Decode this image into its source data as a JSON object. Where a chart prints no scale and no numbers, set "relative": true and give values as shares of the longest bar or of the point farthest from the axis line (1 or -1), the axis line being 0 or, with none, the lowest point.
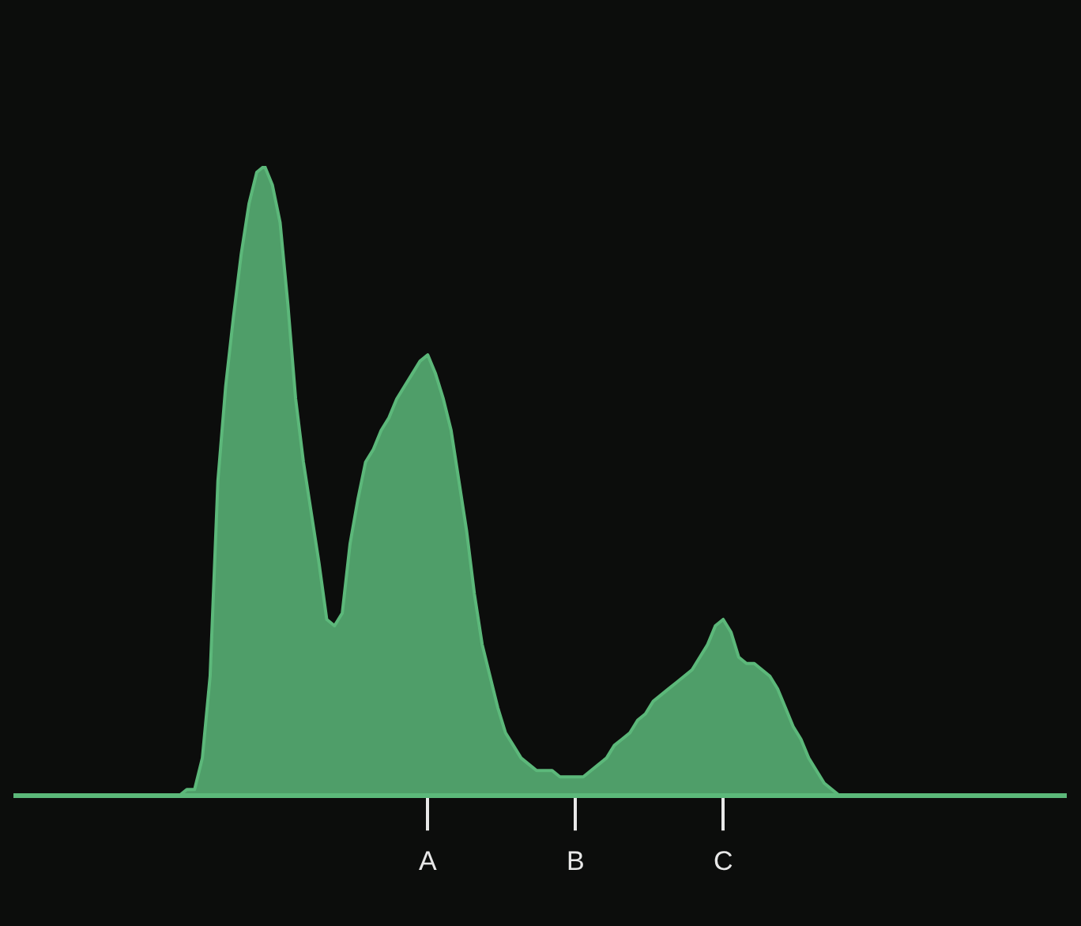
{
  "chart_data": {
    "type": "area",
    "relative": true,
    "color": "#5cb87a",
    "categories": [
      null,
      null,
      null,
      null,
      null,
      null,
      null,
      null,
      null,
      null,
      null,
      null,
      null,
      null,
      null,
      null,
      null,
      null,
      null,
      null,
      null,
      null,
      null,
      null,
      null,
      null,
      null,
      null,
      null,
      null,
      null,
      null,
      null,
      null,
      null,
      null,
      null,
      null,
      null,
      null,
      null,
      null,
      null,
      null,
      null,
      null,
      null,
      null,
      null,
      null,
      null,
      null,
      null,
      "A",
      null,
      null,
      null,
      null,
      null,
      null,
      null,
      null,
      null,
      null,
      null,
      null,
      null,
      null,
      null,
      null,
      null,
      null,
      "B",
      null,
      null,
      null,
      null,
      null,
      null,
      null,
      null,
      null,
      null,
      null,
      null,
      null,
      null,
      null,
      null,
      null,
      null,
      "C",
      null,
      null,
      null,
      null,
      null,
      null,
      null,
      null,
      null,
      null,
      null,
      null,
      null,
      null,
      null,
      null,
      null,
      null,
      null,
      null,
      null,
      null,
      null,
      null,
      null,
      null,
      null,
      null,
      null,
      null,
      null,
      null,
      null,
      null,
      null,
      null,
      null,
      null,
      null,
      null,
      null,
      null,
      null,
      null
    ],
    "values": [
      0,
      0,
      0,
      0,
      0,
      0,
      0,
      0,
      0,
      0,
      0,
      0,
      0,
      0,
      0,
      0,
      0,
      0,
      0,
      0,
      0,
      0,
      0.01,
      0.01,
      0.06,
      0.19,
      0.5,
      0.65,
      0.76,
      0.86,
      0.94,
      0.99,
      1,
      0.97,
      0.91,
      0.78,
      0.63,
      0.53,
      0.45,
      0.37,
      0.28,
      0.27,
      0.29,
      0.4,
      0.47,
      0.53,
      0.55,
      0.58,
      0.6,
      0.63,
      0.65,
      0.67,
      0.69,
      0.7,
      0.67,
      0.63,
      0.58,
      0.5,
      0.42,
      0.32,
      0.24,
      0.19,
      0.14,
      0.1,
      0.08,
      0.06,
      0.05,
      0.04,
      0.04,
      0.04,
      0.03,
      0.03,
      0.03,
      0.03,
      0.04,
      0.05,
      0.06,
      0.08,
      0.09,
      0.1,
      0.12,
      0.13,
      0.15,
      0.16,
      0.17,
      0.18,
      0.19,
      0.2,
      0.22,
      0.24,
      0.27,
      0.28,
      0.26,
      0.22,
      0.21,
      0.21,
      0.2,
      0.19,
      0.17,
      0.14,
      0.11,
      0.09,
      0.06,
      0.04,
      0.02,
      0.01,
      0,
      0,
      0,
      0,
      0,
      0,
      0,
      0,
      0,
      0,
      0,
      0,
      0,
      0,
      0,
      0,
      0,
      0,
      0,
      0,
      0,
      0,
      0,
      0,
      0,
      0,
      0,
      0,
      0,
      0
    ]
  }
}
